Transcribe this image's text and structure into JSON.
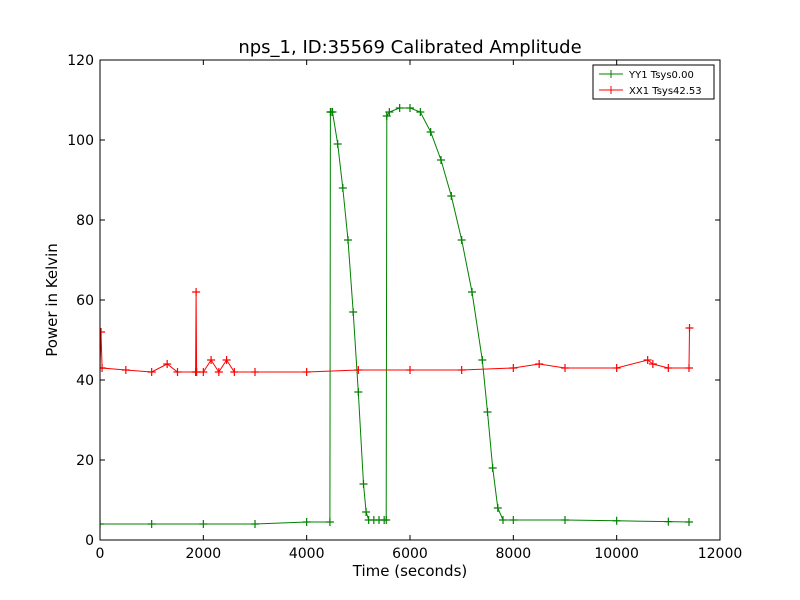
{
  "chart_data": {
    "type": "line",
    "title": "nps_1, ID:35569 Calibrated Amplitude",
    "xlabel": "Time (seconds)",
    "ylabel": "Power in Kelvin",
    "xlim": [
      0,
      12000
    ],
    "ylim": [
      0,
      120
    ],
    "xticks": [
      0,
      2000,
      4000,
      6000,
      8000,
      10000,
      12000
    ],
    "yticks": [
      0,
      20,
      40,
      60,
      80,
      100,
      120
    ],
    "grid": false,
    "legend_position": "top-right",
    "marker": "plus",
    "series": [
      {
        "name": "YY1 Tsys0.00",
        "color": "#008000",
        "x": [
          0,
          1000,
          2000,
          3000,
          4000,
          4450,
          4460,
          4470,
          4500,
          4600,
          4700,
          4800,
          4900,
          5000,
          5100,
          5150,
          5200,
          5300,
          5400,
          5500,
          5540,
          5550,
          5600,
          5800,
          6000,
          6200,
          6400,
          6600,
          6800,
          7000,
          7200,
          7400,
          7500,
          7600,
          7700,
          7800,
          8000,
          9000,
          10000,
          11000,
          11400
        ],
        "y": [
          4,
          4,
          4,
          4,
          4.5,
          4.5,
          107,
          107,
          107,
          99,
          88,
          75,
          57,
          37,
          14,
          7,
          5,
          5,
          5,
          5,
          5,
          106,
          107,
          108,
          108,
          107,
          102,
          95,
          86,
          75,
          62,
          45,
          32,
          18,
          8,
          5,
          5,
          5,
          4.8,
          4.6,
          4.5
        ]
      },
      {
        "name": "XX1 Tsys42.53",
        "color": "#ff0000",
        "x": [
          0,
          20,
          40,
          500,
          1000,
          1300,
          1500,
          1850,
          1860,
          1870,
          2000,
          2150,
          2300,
          2450,
          2600,
          3000,
          4000,
          5000,
          6000,
          7000,
          8000,
          8500,
          9000,
          10000,
          10600,
          10700,
          11000,
          11400,
          11410
        ],
        "y": [
          43,
          52,
          43,
          42.5,
          42,
          44,
          42,
          42,
          62,
          42,
          42,
          45,
          42,
          45,
          42,
          42,
          42,
          42.5,
          42.5,
          42.5,
          43,
          44,
          43,
          43,
          45,
          44,
          43,
          43,
          53
        ]
      }
    ]
  }
}
